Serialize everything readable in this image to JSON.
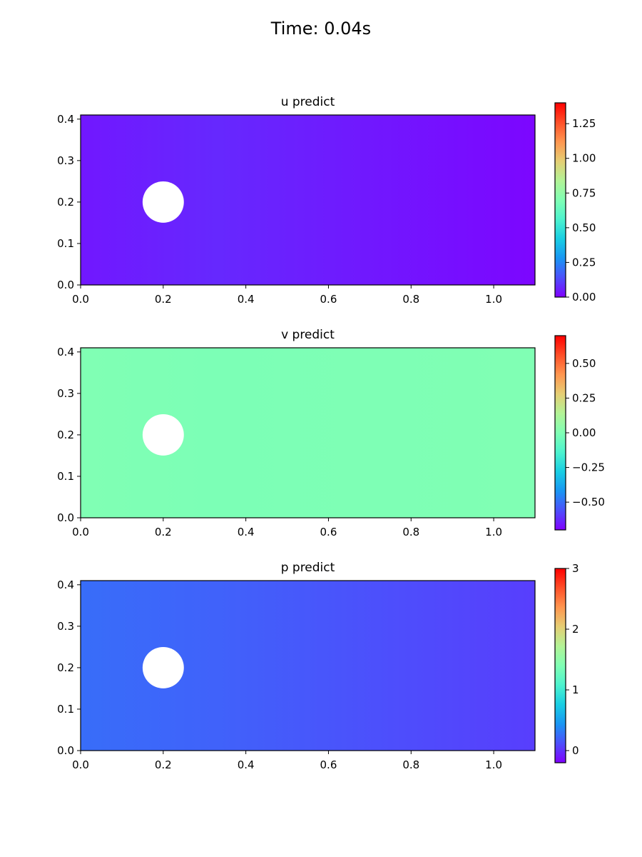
{
  "figure": {
    "suptitle": "Time: 0.04s"
  },
  "chart_data": [
    {
      "type": "heatmap",
      "title": "u predict",
      "xlim": [
        0.0,
        1.1
      ],
      "ylim": [
        0.0,
        0.41
      ],
      "x_ticks": [
        0.0,
        0.2,
        0.4,
        0.6,
        0.8,
        1.0
      ],
      "x_tick_labels": [
        "0.0",
        "0.2",
        "0.4",
        "0.6",
        "0.8",
        "1.0"
      ],
      "y_ticks": [
        0.0,
        0.1,
        0.2,
        0.3,
        0.4
      ],
      "y_tick_labels": [
        "0.0",
        "0.1",
        "0.2",
        "0.3",
        "0.4"
      ],
      "colormap": "rainbow",
      "colorbar": {
        "vmin": 0.0,
        "vmax": 1.4,
        "ticks": [
          0.0,
          0.25,
          0.5,
          0.75,
          1.0,
          1.25
        ],
        "tick_labels": [
          "0.00",
          "0.25",
          "0.50",
          "0.75",
          "1.00",
          "1.25"
        ]
      },
      "obstacle": {
        "shape": "circle",
        "cx": 0.2,
        "cy": 0.2,
        "r": 0.05
      },
      "field": {
        "left_value": 0.04,
        "right_value": 0.01,
        "near_obstacle_value": 0.07
      }
    },
    {
      "type": "heatmap",
      "title": "v predict",
      "xlim": [
        0.0,
        1.1
      ],
      "ylim": [
        0.0,
        0.41
      ],
      "x_ticks": [
        0.0,
        0.2,
        0.4,
        0.6,
        0.8,
        1.0
      ],
      "x_tick_labels": [
        "0.0",
        "0.2",
        "0.4",
        "0.6",
        "0.8",
        "1.0"
      ],
      "y_ticks": [
        0.0,
        0.1,
        0.2,
        0.3,
        0.4
      ],
      "y_tick_labels": [
        "0.0",
        "0.1",
        "0.2",
        "0.3",
        "0.4"
      ],
      "colormap": "rainbow",
      "colorbar": {
        "vmin": -0.7,
        "vmax": 0.7,
        "ticks": [
          -0.5,
          -0.25,
          0.0,
          0.25,
          0.5
        ],
        "tick_labels": [
          "−0.50",
          "−0.25",
          "0.00",
          "0.25",
          "0.50"
        ]
      },
      "obstacle": {
        "shape": "circle",
        "cx": 0.2,
        "cy": 0.2,
        "r": 0.05
      },
      "field": {
        "left_value": 0.0,
        "right_value": 0.0,
        "near_obstacle_value": -0.01
      }
    },
    {
      "type": "heatmap",
      "title": "p predict",
      "xlim": [
        0.0,
        1.1
      ],
      "ylim": [
        0.0,
        0.41
      ],
      "x_ticks": [
        0.0,
        0.2,
        0.4,
        0.6,
        0.8,
        1.0
      ],
      "x_tick_labels": [
        "0.0",
        "0.2",
        "0.4",
        "0.6",
        "0.8",
        "1.0"
      ],
      "y_ticks": [
        0.0,
        0.1,
        0.2,
        0.3,
        0.4
      ],
      "y_tick_labels": [
        "0.0",
        "0.1",
        "0.2",
        "0.3",
        "0.4"
      ],
      "colormap": "rainbow",
      "colorbar": {
        "vmin": -0.2,
        "vmax": 3.0,
        "ticks": [
          0,
          1,
          2,
          3
        ],
        "tick_labels": [
          "0",
          "1",
          "2",
          "3"
        ]
      },
      "obstacle": {
        "shape": "circle",
        "cx": 0.2,
        "cy": 0.2,
        "r": 0.05
      },
      "field": {
        "left_value": 0.25,
        "right_value": 0.05,
        "near_obstacle_value": 0.2
      }
    }
  ]
}
